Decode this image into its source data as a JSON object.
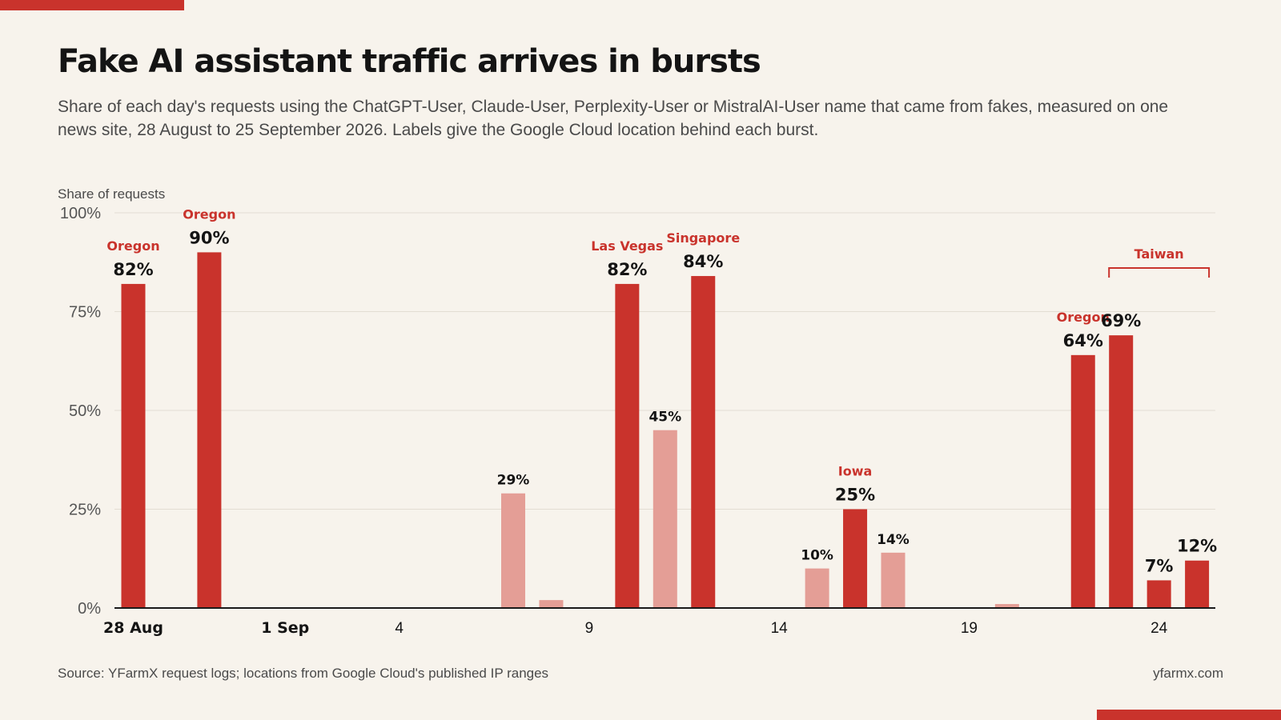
{
  "title": "Fake AI assistant traffic arrives in bursts",
  "subtitle": "Share of each day's requests using the ChatGPT-User, Claude-User, Perplexity-User or MistralAI-User name that came from fakes, measured on one news site, 28 August to 25 September 2026. Labels give the Google Cloud location behind each burst.",
  "source": "Source: YFarmX request logs; locations from Google Cloud's published IP ranges",
  "brand": "yfarmx.com",
  "colors": {
    "burst": "#c9332c",
    "minor": "#e49e96",
    "background": "#f7f3ec",
    "axis": "#1a1a1a",
    "grid": "#e3ddd3"
  },
  "chart_data": {
    "type": "bar",
    "ylabel": "Share of requests",
    "ylim": [
      0,
      100
    ],
    "yticks": [
      {
        "value": 0,
        "label": "0%"
      },
      {
        "value": 25,
        "label": "25%"
      },
      {
        "value": 50,
        "label": "50%"
      },
      {
        "value": 75,
        "label": "75%"
      },
      {
        "value": 100,
        "label": "100%"
      }
    ],
    "xticks": [
      {
        "date": "2026-08-28",
        "label": "28 Aug",
        "bold": true
      },
      {
        "date": "2026-09-01",
        "label": "1 Sep",
        "bold": true
      },
      {
        "date": "2026-09-04",
        "label": "4",
        "bold": false
      },
      {
        "date": "2026-09-09",
        "label": "9",
        "bold": false
      },
      {
        "date": "2026-09-14",
        "label": "14",
        "bold": false
      },
      {
        "date": "2026-09-19",
        "label": "19",
        "bold": false
      },
      {
        "date": "2026-09-24",
        "label": "24",
        "bold": false
      }
    ],
    "grid": true,
    "bars": [
      {
        "date": "2026-08-28",
        "value": 82,
        "label": "82%",
        "location": "Oregon",
        "burst": true
      },
      {
        "date": "2026-08-30",
        "value": 90,
        "label": "90%",
        "location": "Oregon",
        "burst": true
      },
      {
        "date": "2026-09-07",
        "value": 29,
        "label": "29%",
        "location": "",
        "burst": false
      },
      {
        "date": "2026-09-08",
        "value": 2,
        "label": "",
        "location": "",
        "burst": false
      },
      {
        "date": "2026-09-10",
        "value": 82,
        "label": "82%",
        "location": "Las Vegas",
        "burst": true
      },
      {
        "date": "2026-09-11",
        "value": 45,
        "label": "45%",
        "location": "",
        "burst": false
      },
      {
        "date": "2026-09-12",
        "value": 84,
        "label": "84%",
        "location": "Singapore",
        "burst": true
      },
      {
        "date": "2026-09-15",
        "value": 10,
        "label": "10%",
        "location": "",
        "burst": false
      },
      {
        "date": "2026-09-16",
        "value": 25,
        "label": "25%",
        "location": "Iowa",
        "burst": true
      },
      {
        "date": "2026-09-17",
        "value": 14,
        "label": "14%",
        "location": "",
        "burst": false
      },
      {
        "date": "2026-09-20",
        "value": 1,
        "label": "",
        "location": "",
        "burst": false
      },
      {
        "date": "2026-09-22",
        "value": 64,
        "label": "64%",
        "location": "Oregon",
        "burst": true
      },
      {
        "date": "2026-09-23",
        "value": 69,
        "label": "69%",
        "location": "",
        "burst": true
      },
      {
        "date": "2026-09-24",
        "value": 7,
        "label": "7%",
        "location": "",
        "burst": true
      },
      {
        "date": "2026-09-25",
        "value": 12,
        "label": "12%",
        "location": "",
        "burst": true
      }
    ],
    "group_annotations": [
      {
        "label": "Taiwan",
        "from": "2026-09-23",
        "to": "2026-09-25"
      }
    ]
  }
}
